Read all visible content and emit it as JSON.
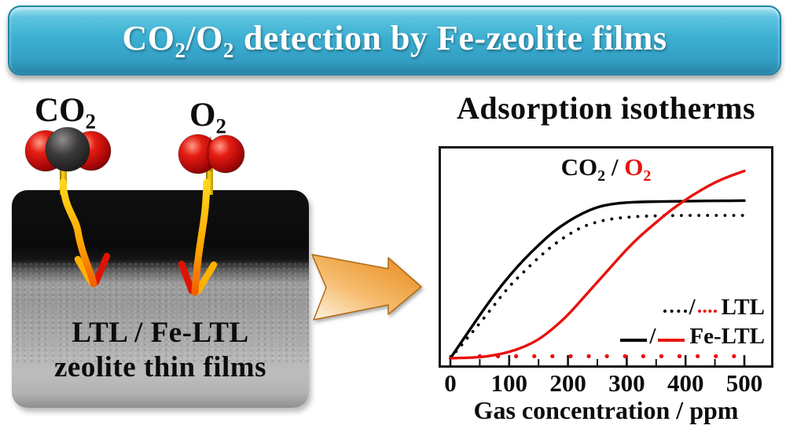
{
  "banner": {
    "co": "CO",
    "co_sub": "2",
    "slash": "/",
    "o": "O",
    "o_sub": "2",
    "rest": "detection by Fe-zeolite films"
  },
  "left_panel": {
    "co2_label": {
      "base": "CO",
      "sub": "2"
    },
    "o2_label": {
      "base": "O",
      "sub": "2"
    },
    "film_line1": "LTL / Fe-LTL",
    "film_line2": "zeolite thin films"
  },
  "right_panel": {
    "heading": "Adsorption isotherms"
  },
  "icons": {
    "process_arrow": "right-block-arrow",
    "gas_arrows": "curved-down-adsorption-arrows",
    "co2_molecule": "space-filling-co2",
    "o2_molecule": "space-filling-o2"
  },
  "colors": {
    "banner_cyan": "#3cb0d2",
    "accent_red": "#e8120f",
    "arrow_orange": "#ee9631",
    "black": "#000000"
  },
  "chart_data": {
    "type": "line",
    "title": {
      "co": "CO",
      "co_sub": "2",
      "slash": " / ",
      "o": "O",
      "o_sub": "2"
    },
    "xlabel": "Gas concentration / ppm",
    "ylabel": "",
    "xlim": [
      0,
      500
    ],
    "ylim": [
      0,
      1
    ],
    "grid": false,
    "y_axis_shown": false,
    "legend_position": "right-middle",
    "x_ticks": [
      0,
      100,
      200,
      300,
      400,
      500
    ],
    "x_minor_ticks": [
      50,
      150,
      250,
      350,
      450
    ],
    "x": [
      0,
      25,
      50,
      75,
      100,
      125,
      150,
      175,
      200,
      225,
      250,
      275,
      300,
      325,
      350,
      375,
      400,
      425,
      450,
      475,
      500
    ],
    "series": [
      {
        "name": "Fe-LTL CO2",
        "color": "#000000",
        "style": "solid",
        "values": [
          0,
          0.105,
          0.21,
          0.31,
          0.4,
          0.48,
          0.55,
          0.615,
          0.665,
          0.705,
          0.735,
          0.75,
          0.757,
          0.76,
          0.761,
          0.762,
          0.763,
          0.764,
          0.765,
          0.765,
          0.766
        ]
      },
      {
        "name": "LTL CO2",
        "color": "#000000",
        "style": "dotted",
        "values": [
          0,
          0.085,
          0.17,
          0.26,
          0.35,
          0.42,
          0.49,
          0.55,
          0.6,
          0.64,
          0.663,
          0.678,
          0.685,
          0.69,
          0.692,
          0.693,
          0.694,
          0.694,
          0.694,
          0.694,
          0.694
        ]
      },
      {
        "name": "Fe-LTL O2",
        "color": "#e8120f",
        "style": "solid",
        "values": [
          0,
          0.002,
          0.005,
          0.015,
          0.03,
          0.055,
          0.09,
          0.145,
          0.21,
          0.29,
          0.37,
          0.45,
          0.53,
          0.6,
          0.66,
          0.72,
          0.77,
          0.815,
          0.855,
          0.885,
          0.91
        ]
      },
      {
        "name": "LTL O2",
        "color": "#e8120f",
        "style": "dotted",
        "x_start": 50,
        "values": [
          0.01,
          0.01,
          0.01,
          0.01,
          0.01,
          0.01,
          0.01,
          0.01,
          0.01,
          0.01,
          0.01,
          0.01,
          0.01,
          0.01,
          0.01,
          0.01,
          0.01,
          0.01,
          0.01,
          0.01,
          0.01
        ]
      }
    ],
    "legend": [
      {
        "label": "LTL",
        "style": "dotted"
      },
      {
        "label": "Fe-LTL",
        "style": "solid"
      }
    ],
    "legend_slash": "/",
    "colors": {
      "black": "#000000",
      "red": "#e8120f"
    }
  }
}
